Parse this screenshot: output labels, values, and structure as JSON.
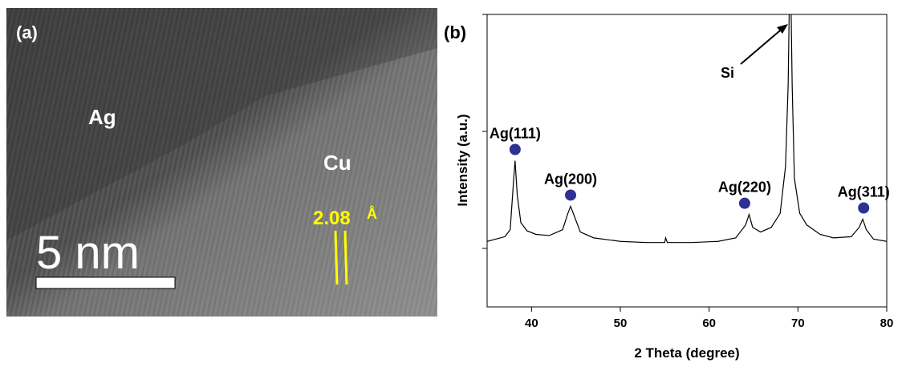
{
  "image_panel": {
    "panel_label": "(a)",
    "phase_labels": [
      "Ag",
      "Cu"
    ],
    "spacing": "2.08",
    "spacing_unit": "Å",
    "scale_bar": "5 nm"
  },
  "chart_data": {
    "type": "line",
    "panel_label": "(b)",
    "x_label": "2 Theta (degree)",
    "y_label": "Intensity (a.u.)",
    "xlim": [
      35,
      80
    ],
    "xticks": [
      40,
      50,
      60,
      70,
      80
    ],
    "ylim": [
      -0.5,
      2
    ],
    "yticks": [
      0,
      1,
      2
    ],
    "series": [
      {
        "color": "#000000",
        "x": [
          35,
          36,
          37,
          37.6,
          38.0,
          38.15,
          38.4,
          38.8,
          39.5,
          40.5,
          42,
          43.5,
          44.1,
          44.4,
          44.8,
          45.5,
          47,
          50,
          53,
          55,
          55.1,
          55.3,
          58,
          61,
          63,
          64.1,
          64.5,
          64.9,
          65.8,
          67,
          68,
          68.6,
          68.9,
          69.05,
          69.2,
          69.35,
          69.6,
          70.2,
          71,
          72.5,
          74,
          76,
          76.9,
          77.3,
          77.7,
          78.5,
          80
        ],
        "values": [
          0.06,
          0.08,
          0.1,
          0.16,
          0.6,
          0.75,
          0.45,
          0.22,
          0.15,
          0.12,
          0.11,
          0.16,
          0.3,
          0.36,
          0.28,
          0.14,
          0.09,
          0.06,
          0.05,
          0.05,
          0.09,
          0.05,
          0.05,
          0.06,
          0.09,
          0.2,
          0.29,
          0.18,
          0.14,
          0.18,
          0.3,
          0.7,
          1.4,
          2.2,
          2.2,
          1.4,
          0.6,
          0.3,
          0.2,
          0.12,
          0.09,
          0.1,
          0.18,
          0.25,
          0.16,
          0.08,
          0.06
        ]
      }
    ],
    "peaks": [
      {
        "label": "Ag(111)",
        "x": 38.15
      },
      {
        "label": "Ag(200)",
        "x": 44.4
      },
      {
        "label": "Ag(220)",
        "x": 64.0
      },
      {
        "label": "Ag(311)",
        "x": 77.4
      }
    ],
    "arrow_label": "Si",
    "peak_color": "#2e3192"
  }
}
